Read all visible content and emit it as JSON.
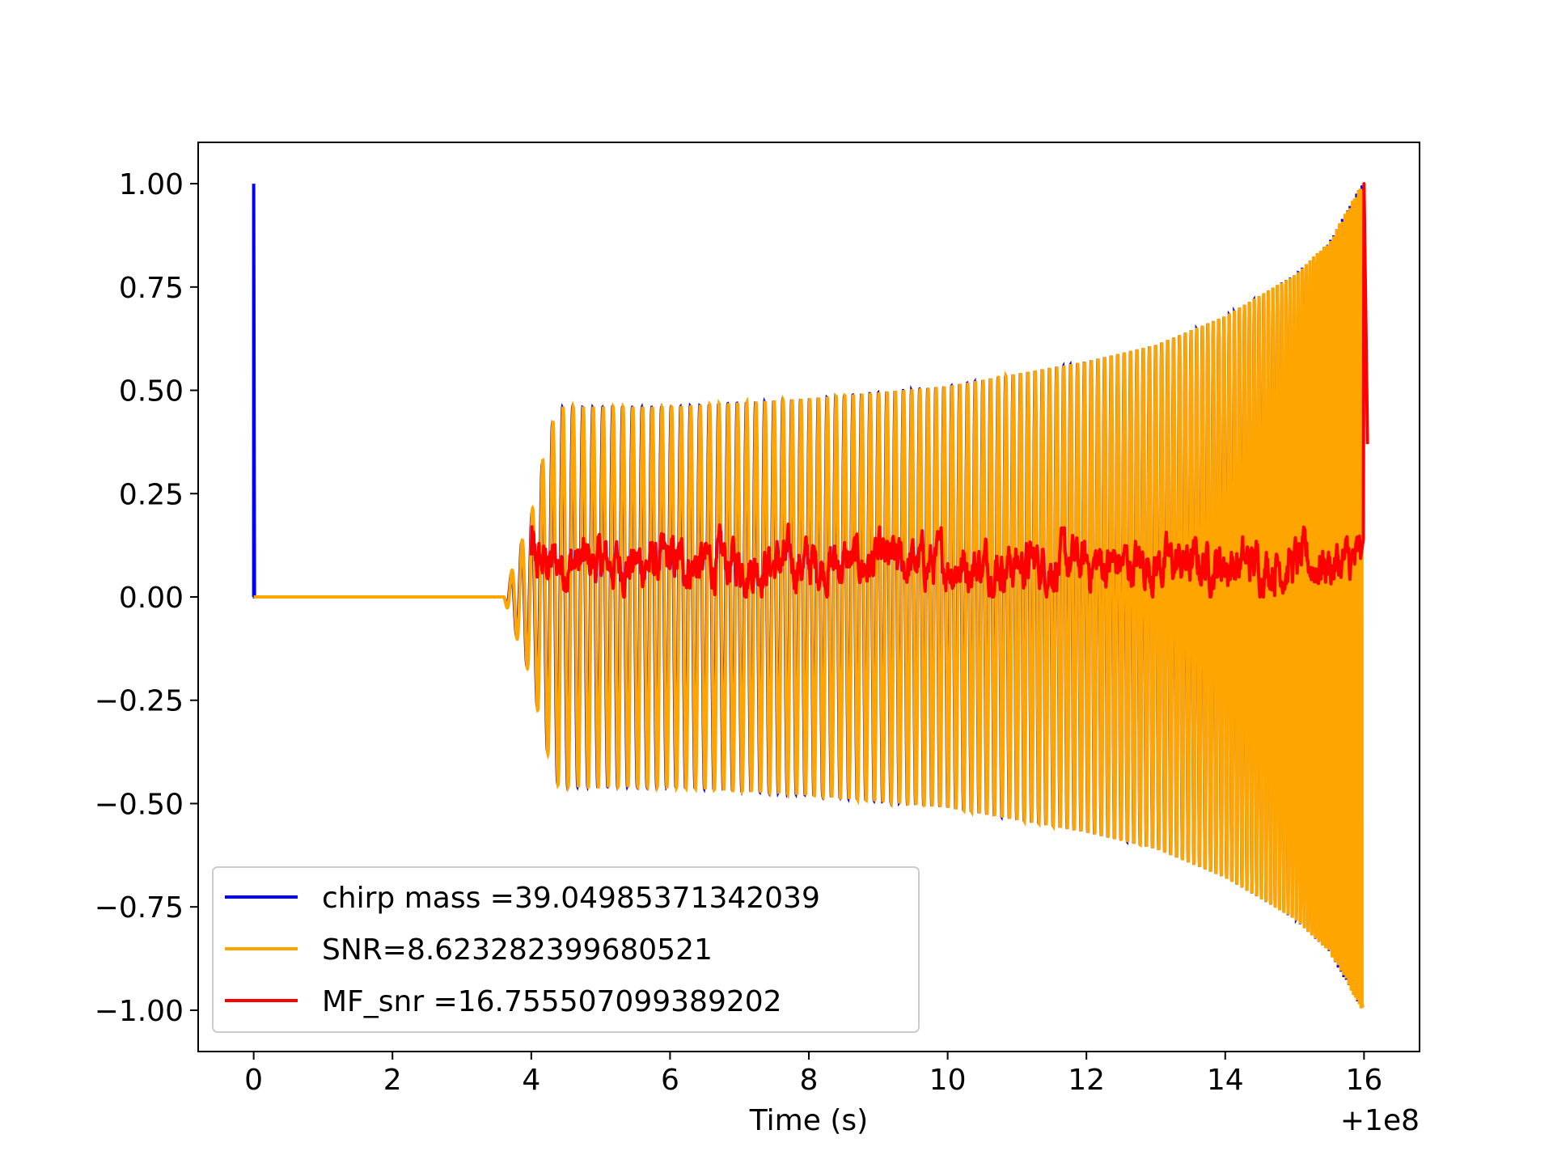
{
  "chart_data": {
    "type": "line",
    "title": "",
    "xlabel": "Time (s)",
    "ylabel": "",
    "x_offset_label": "+1e8",
    "xlim": [
      -0.8,
      16.8
    ],
    "ylim": [
      -1.1,
      1.1
    ],
    "x_ticks": [
      0,
      2,
      4,
      6,
      8,
      10,
      12,
      14,
      16
    ],
    "x_tick_labels": [
      "0",
      "2",
      "4",
      "6",
      "8",
      "10",
      "12",
      "14",
      "16"
    ],
    "y_ticks": [
      1.0,
      0.75,
      0.5,
      0.25,
      0.0,
      -0.25,
      -0.5,
      -0.75,
      -1.0
    ],
    "y_tick_labels": [
      "1.00",
      "0.75",
      "0.50",
      "0.25",
      "0.00",
      "−0.25",
      "−0.50",
      "−0.75",
      "−1.00"
    ],
    "grid": false,
    "legend_position": "lower-left",
    "series": [
      {
        "name": "chirp mass =39.04985371342039",
        "color": "#0000ff",
        "kind": "chirp",
        "spike": {
          "x": 0.0,
          "y": 1.0
        },
        "envelope": [
          [
            3.6,
            0.0
          ],
          [
            3.75,
            0.08
          ],
          [
            4.0,
            0.2
          ],
          [
            4.15,
            0.32
          ],
          [
            4.3,
            0.42
          ],
          [
            4.4,
            0.46
          ],
          [
            6.0,
            0.46
          ],
          [
            8.0,
            0.48
          ],
          [
            10.0,
            0.51
          ],
          [
            12.0,
            0.57
          ],
          [
            13.0,
            0.61
          ],
          [
            14.0,
            0.68
          ],
          [
            15.0,
            0.78
          ],
          [
            15.5,
            0.86
          ],
          [
            15.97,
            1.0
          ]
        ],
        "x_start": 3.6,
        "x_end": 16.0
      },
      {
        "name": "SNR=8.623282399680521",
        "color": "#ffa500",
        "kind": "chirp",
        "envelope": [
          [
            3.6,
            0.0
          ],
          [
            3.75,
            0.08
          ],
          [
            4.0,
            0.2
          ],
          [
            4.15,
            0.32
          ],
          [
            4.3,
            0.42
          ],
          [
            4.4,
            0.46
          ],
          [
            6.0,
            0.46
          ],
          [
            8.0,
            0.48
          ],
          [
            10.0,
            0.51
          ],
          [
            12.0,
            0.57
          ],
          [
            13.0,
            0.61
          ],
          [
            14.0,
            0.68
          ],
          [
            15.0,
            0.78
          ],
          [
            15.5,
            0.86
          ],
          [
            15.97,
            1.0
          ]
        ],
        "x_start": 0.0,
        "x_end": 16.0
      },
      {
        "name": "MF_snr =16.755507099389202",
        "color": "#ff0000",
        "kind": "noise",
        "x_start": 4.0,
        "x_end": 15.95,
        "level_min": 0.0,
        "level_max": 0.18,
        "mean": 0.08,
        "peak": {
          "x": 16.0,
          "y": 1.0
        },
        "final": {
          "x": 16.05,
          "y": 0.37
        }
      }
    ]
  }
}
